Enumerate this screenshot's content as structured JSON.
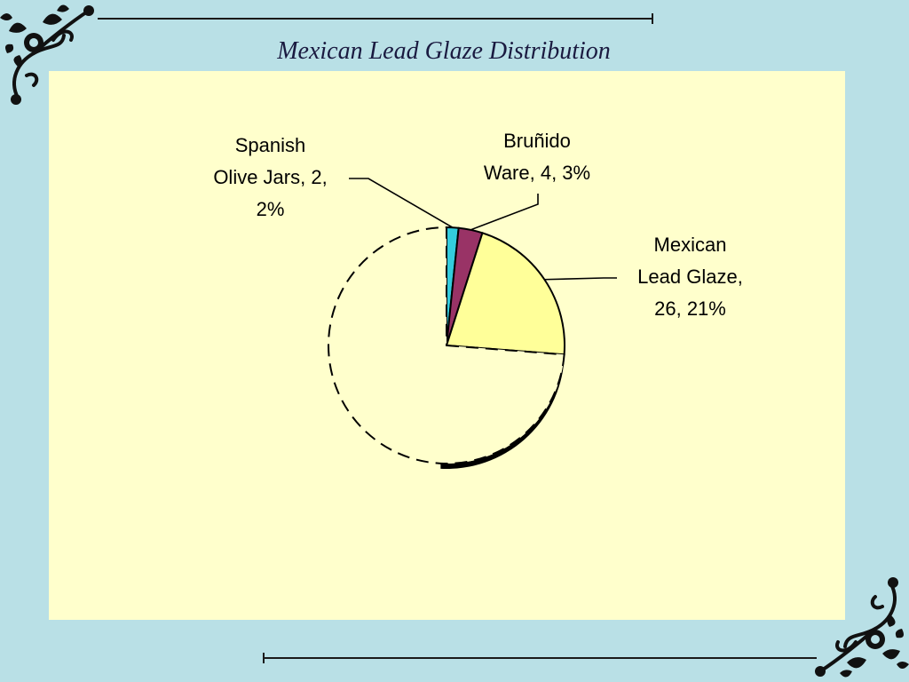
{
  "chart_data": {
    "type": "pie",
    "title": "Mexican Lead Glaze Distribution",
    "slices": [
      {
        "label": "Spanish Olive Jars",
        "value": 2,
        "percent": 2,
        "color": "#33ccdd",
        "label_text": "Spanish\nOlive Jars, 2,\n2%"
      },
      {
        "label": "Bruñido Ware",
        "value": 4,
        "percent": 3,
        "color": "#993366",
        "label_text": "Bruñido\nWare, 4, 3%"
      },
      {
        "label": "Mexican Lead Glaze",
        "value": 26,
        "percent": 21,
        "color": "#ffff99",
        "label_text": "Mexican\nLead Glaze,\n26, 21%"
      },
      {
        "label": "",
        "value": 90,
        "percent": 74,
        "color": "#ffffcc"
      }
    ]
  }
}
